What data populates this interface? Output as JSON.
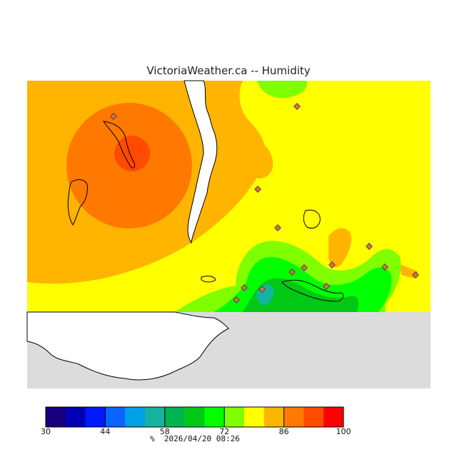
{
  "title": "VictoriaWeather.ca  --  Humidity",
  "footer": {
    "unit": "%",
    "timestamp": "2026/04/20 08:26"
  },
  "colorbar": {
    "colors": [
      "#19007f",
      "#0000b4",
      "#0019ff",
      "#0a64ff",
      "#00a0e6",
      "#14b4a0",
      "#00b450",
      "#00c814",
      "#00ff00",
      "#7fff00",
      "#ffff00",
      "#ffb400",
      "#ff7800",
      "#ff4b00",
      "#ff0000"
    ],
    "ticks": [
      "30",
      "44",
      "58",
      "72",
      "86",
      "100"
    ],
    "min": 30,
    "max": 100
  },
  "map_colors": {
    "land_gray": "#dcdcdc",
    "water_white": "#ffffff",
    "coast": "#000000",
    "station_marker": "#a0522d"
  }
}
